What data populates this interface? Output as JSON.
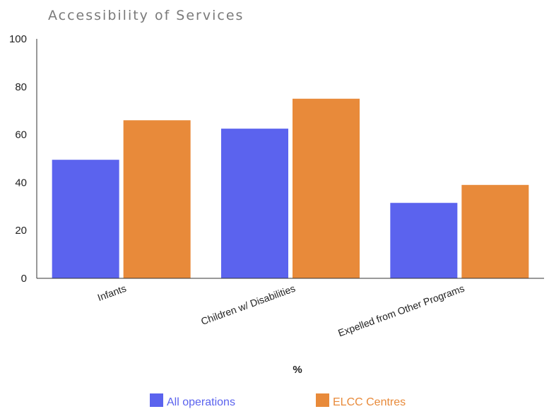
{
  "chart_data": {
    "type": "bar",
    "title": "Accessibility of Services",
    "xlabel": "%",
    "ylabel": "",
    "ylim": [
      0,
      100
    ],
    "yticks": [
      0,
      20,
      40,
      60,
      80,
      100
    ],
    "categories": [
      "Infants",
      "Children w/ Disabilities",
      "Expelled from Other Programs"
    ],
    "series": [
      {
        "name": "All operations",
        "values": [
          49.5,
          62.5,
          31.5
        ],
        "color": "#5b63ee"
      },
      {
        "name": "ELCC Centres",
        "values": [
          66,
          75,
          39
        ],
        "color": "#e88a3a"
      }
    ],
    "grid": false,
    "legend_position": "bottom"
  }
}
